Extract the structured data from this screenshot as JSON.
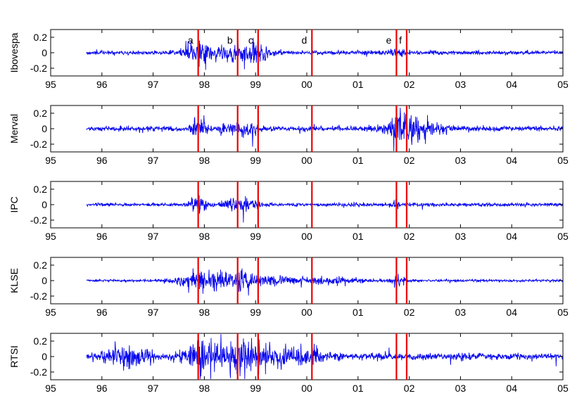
{
  "chart_data": {
    "type": "line",
    "x_axis": {
      "ticks": [
        95,
        96,
        97,
        98,
        99,
        100,
        101,
        102,
        103,
        104,
        105
      ],
      "tick_labels": [
        "95",
        "96",
        "97",
        "98",
        "99",
        "00",
        "01",
        "02",
        "03",
        "04",
        "05"
      ],
      "range": [
        95,
        105
      ],
      "data_start": 95.7
    },
    "y_axis": {
      "ticks": [
        0.2,
        0,
        -0.2
      ],
      "tick_labels": [
        "0.2",
        "0",
        "-0.2"
      ],
      "range": [
        -0.3,
        0.3
      ]
    },
    "grid": false,
    "line_color": "#0000ee",
    "event_color": "#ee0000",
    "events": [
      {
        "label": "a",
        "x": 97.88
      },
      {
        "label": "b",
        "x": 98.65
      },
      {
        "label": "c",
        "x": 99.05
      },
      {
        "label": "d",
        "x": 100.1
      },
      {
        "label": "e",
        "x": 101.75
      },
      {
        "label": "f",
        "x": 101.95
      }
    ],
    "series": [
      {
        "name": "Ibovespa",
        "base_amp": 0.012,
        "seed": 11,
        "bursts": [
          {
            "x": 97.88,
            "w": 0.25,
            "amp": 0.06
          },
          {
            "x": 98.7,
            "w": 0.4,
            "amp": 0.07
          },
          {
            "x": 99.05,
            "w": 0.2,
            "amp": 0.05
          },
          {
            "x": 101.75,
            "w": 0.15,
            "amp": 0.03
          }
        ]
      },
      {
        "name": "Merval",
        "base_amp": 0.014,
        "seed": 23,
        "bursts": [
          {
            "x": 97.88,
            "w": 0.15,
            "amp": 0.05
          },
          {
            "x": 98.7,
            "w": 0.35,
            "amp": 0.035
          },
          {
            "x": 102.05,
            "w": 0.5,
            "amp": 0.08
          },
          {
            "x": 101.75,
            "w": 0.15,
            "amp": 0.04
          }
        ]
      },
      {
        "name": "IPC",
        "base_amp": 0.01,
        "seed": 37,
        "bursts": [
          {
            "x": 97.88,
            "w": 0.15,
            "amp": 0.045
          },
          {
            "x": 98.7,
            "w": 0.3,
            "amp": 0.04
          },
          {
            "x": 101.75,
            "w": 0.1,
            "amp": 0.02
          }
        ]
      },
      {
        "name": "KLSE",
        "base_amp": 0.007,
        "seed": 53,
        "bursts": [
          {
            "x": 97.95,
            "w": 0.5,
            "amp": 0.06
          },
          {
            "x": 98.7,
            "w": 0.25,
            "amp": 0.05
          },
          {
            "x": 99.3,
            "w": 0.6,
            "amp": 0.02
          },
          {
            "x": 100.5,
            "w": 0.6,
            "amp": 0.018
          },
          {
            "x": 101.75,
            "w": 0.12,
            "amp": 0.03
          }
        ]
      },
      {
        "name": "RTSI",
        "base_amp": 0.02,
        "seed": 71,
        "bursts": [
          {
            "x": 96.5,
            "w": 0.4,
            "amp": 0.05
          },
          {
            "x": 97.88,
            "w": 0.3,
            "amp": 0.06
          },
          {
            "x": 98.6,
            "w": 0.5,
            "amp": 0.08
          },
          {
            "x": 99.3,
            "w": 0.6,
            "amp": 0.04
          },
          {
            "x": 100.1,
            "w": 0.3,
            "amp": 0.04
          }
        ]
      }
    ]
  }
}
